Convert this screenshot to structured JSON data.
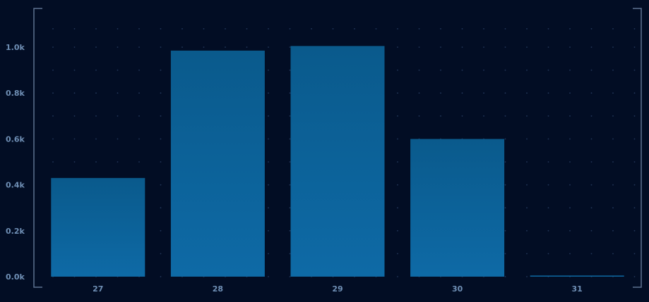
{
  "chart_data": {
    "type": "bar",
    "categories": [
      "27",
      "28",
      "29",
      "30",
      "31"
    ],
    "values": [
      430,
      985,
      1005,
      600,
      5
    ],
    "y_tick_labels": [
      "0.0k",
      "0.2k",
      "0.4k",
      "0.6k",
      "0.8k",
      "1.0k"
    ],
    "y_tick_values": [
      0,
      200,
      400,
      600,
      800,
      1000
    ],
    "ylim": [
      0,
      1120
    ],
    "grid": "dotted",
    "title": "",
    "xlabel": "",
    "ylabel": ""
  },
  "colors": {
    "background": "#020d24",
    "bar_top": "#0a5a8c",
    "bar_bottom": "#0e6aa6",
    "axis_text": "#6f8fb5",
    "frame": "#5d7190",
    "grid_dot": "#23375a"
  }
}
